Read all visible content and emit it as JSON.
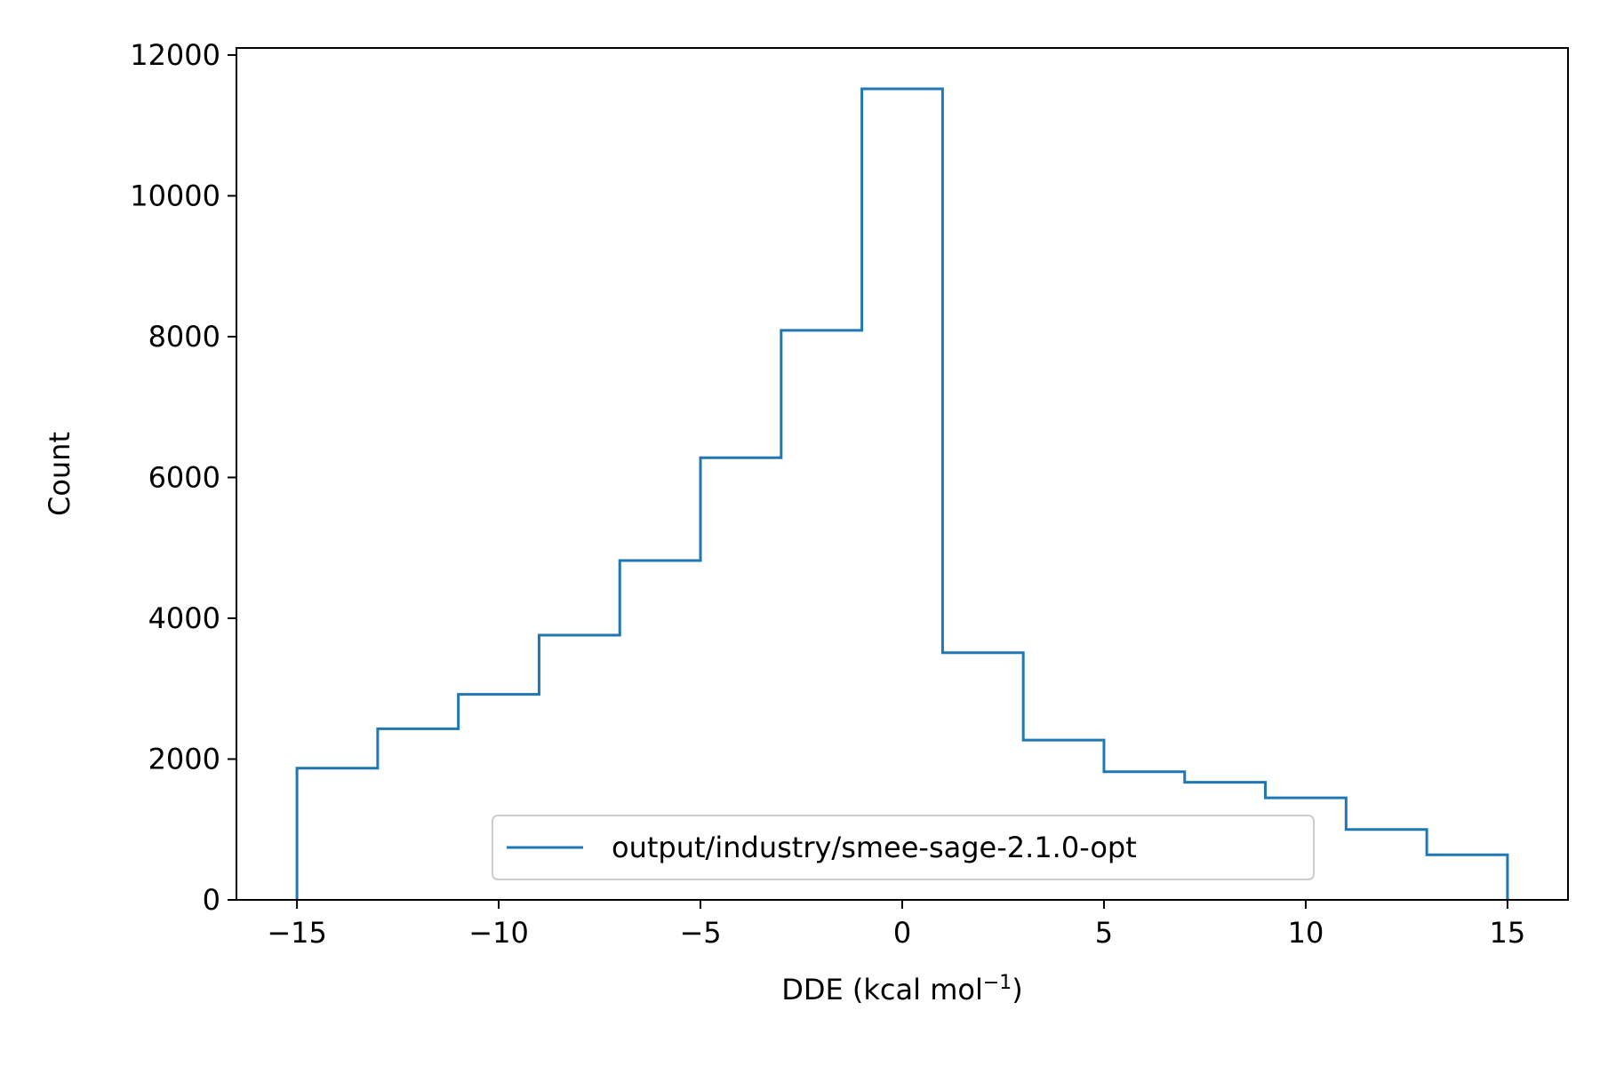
{
  "chart_data": {
    "type": "histogram",
    "xlabel": "DDE (kcal mol",
    "xlabel_sup": "−1",
    "xlabel_close": ")",
    "ylabel": "Count",
    "xlim": [
      -16.5,
      16.5
    ],
    "ylim": [
      0,
      12100
    ],
    "xticks": [
      -15,
      -10,
      -5,
      0,
      5,
      10,
      15
    ],
    "xtick_labels": [
      "−15",
      "−10",
      "−5",
      "0",
      "5",
      "10",
      "15"
    ],
    "yticks": [
      0,
      2000,
      4000,
      6000,
      8000,
      10000,
      12000
    ],
    "ytick_labels": [
      "0",
      "2000",
      "4000",
      "6000",
      "8000",
      "10000",
      "12000"
    ],
    "bin_edges": [
      -15,
      -13,
      -11,
      -9,
      -7,
      -5,
      -3,
      -1,
      1,
      3,
      5,
      7,
      9,
      11,
      13,
      15
    ],
    "series": [
      {
        "name": "output/industry/smee-sage-2.1.0-opt",
        "color": "#1f77b4",
        "values": [
          1870,
          2430,
          2920,
          3760,
          4820,
          6280,
          8090,
          11520,
          3510,
          2270,
          1820,
          1670,
          1450,
          1000,
          640
        ]
      }
    ],
    "legend_position": "lower right",
    "grid": false
  }
}
